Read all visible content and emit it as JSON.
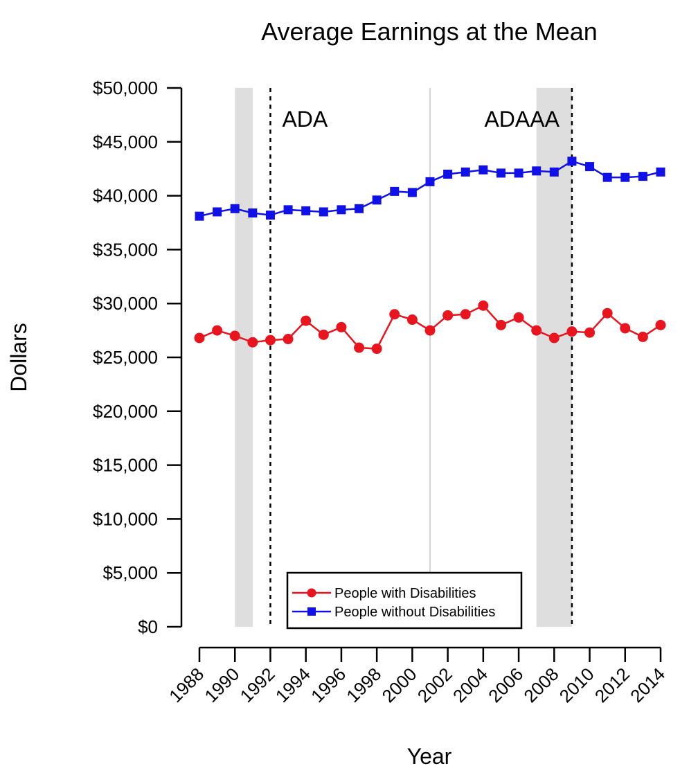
{
  "chart_data": {
    "type": "line",
    "title": "Average Earnings at the Mean",
    "xlabel": "Year",
    "ylabel": "Dollars",
    "x": [
      1988,
      1989,
      1990,
      1991,
      1992,
      1993,
      1994,
      1995,
      1996,
      1997,
      1998,
      1999,
      2000,
      2001,
      2002,
      2003,
      2004,
      2005,
      2006,
      2007,
      2008,
      2009,
      2010,
      2011,
      2012,
      2013,
      2014
    ],
    "xticks": [
      "1988",
      "1990",
      "1992",
      "1994",
      "1996",
      "1998",
      "2000",
      "2002",
      "2004",
      "2006",
      "2008",
      "2010",
      "2012",
      "2014"
    ],
    "yticks": [
      "$0",
      "$5,000",
      "$10,000",
      "$15,000",
      "$20,000",
      "$25,000",
      "$30,000",
      "$35,000",
      "$40,000",
      "$45,000",
      "$50,000"
    ],
    "ylim": [
      0,
      50000
    ],
    "xlim": [
      1988,
      2014
    ],
    "series": [
      {
        "name": "People with Disabilities",
        "color": "#e8141e",
        "marker": "circle",
        "values": [
          26800,
          27500,
          27000,
          26400,
          26600,
          26700,
          28400,
          27100,
          27800,
          25900,
          25800,
          29000,
          28500,
          27500,
          28900,
          29000,
          29800,
          28000,
          28700,
          27500,
          26800,
          27400,
          27300,
          29100,
          27700,
          26900,
          28000
        ]
      },
      {
        "name": "People without Disabilities",
        "color": "#1010e8",
        "marker": "square",
        "values": [
          38100,
          38500,
          38800,
          38400,
          38200,
          38700,
          38600,
          38500,
          38700,
          38800,
          39600,
          40400,
          40300,
          41300,
          42000,
          42200,
          42400,
          42100,
          42100,
          42300,
          42200,
          43200,
          42700,
          41700,
          41700,
          41800,
          42200
        ]
      }
    ],
    "shaded_periods": [
      [
        1990,
        1991
      ],
      [
        2007,
        2009
      ]
    ],
    "vlines": [
      {
        "x": 1992,
        "label": "ADA",
        "style": "dotted"
      },
      {
        "x": 2009,
        "label": "ADAAA",
        "style": "dotted"
      },
      {
        "x": 2001,
        "label": "",
        "style": "solid-light"
      }
    ],
    "legend_position": "bottom-center",
    "grid": false
  }
}
